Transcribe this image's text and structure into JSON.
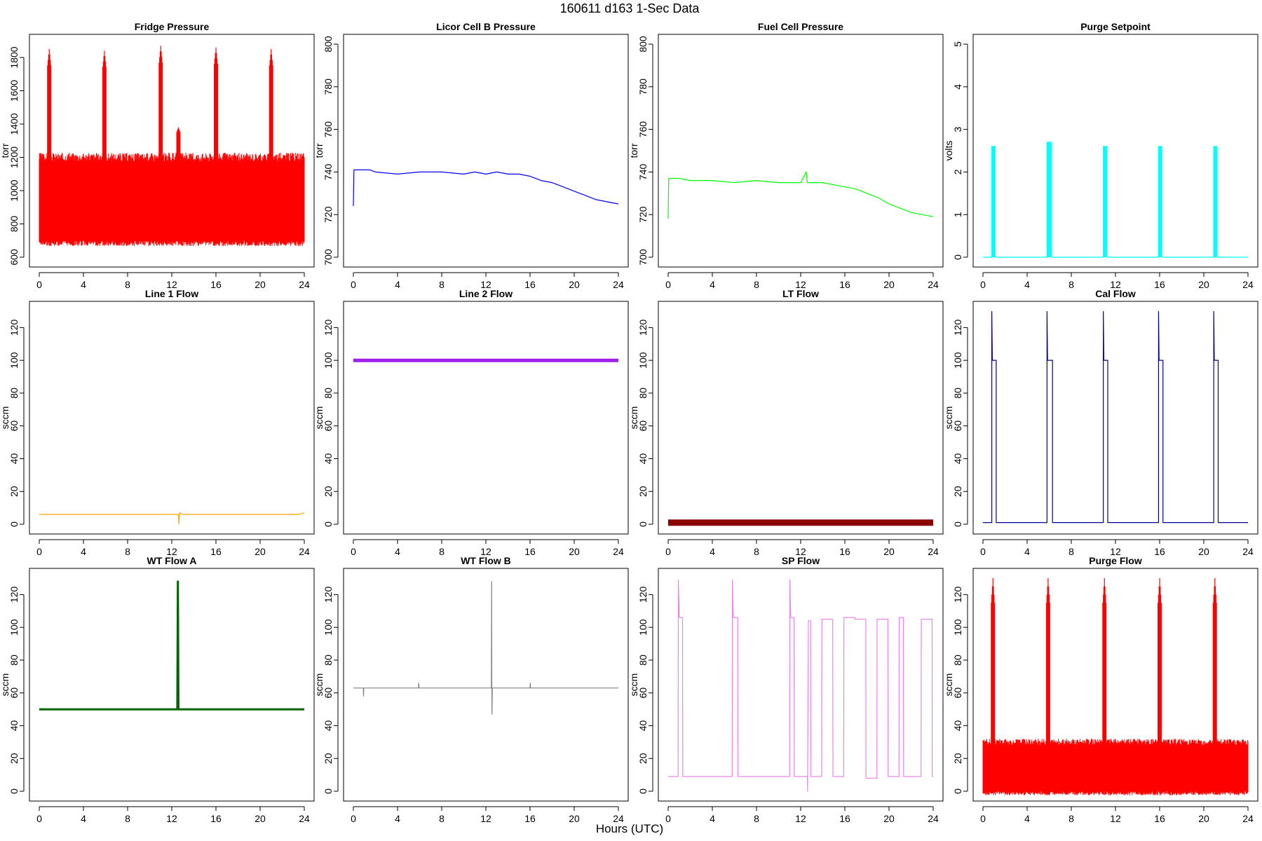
{
  "figure": {
    "title": "160611   d163   1-Sec Data",
    "xlabel": "Hours (UTC)"
  },
  "chart_data": [
    {
      "type": "line",
      "title": "Fridge Pressure",
      "ylabel": "torr",
      "color": "#ff0000",
      "xlim": [
        0,
        24
      ],
      "ylim": [
        600,
        1880
      ],
      "yticks": [
        600,
        800,
        1000,
        1200,
        1400,
        1600,
        1800
      ],
      "xticks": [
        0,
        4,
        8,
        12,
        16,
        20,
        24
      ],
      "render": "band",
      "band": {
        "x": [
          0,
          24
        ],
        "lo": 700,
        "hi": 1200,
        "jitter": 55
      },
      "spikes": [
        {
          "x": 0.9,
          "y": 1850
        },
        {
          "x": 5.9,
          "y": 1840
        },
        {
          "x": 11.0,
          "y": 1870
        },
        {
          "x": 16.0,
          "y": 1860
        },
        {
          "x": 21.0,
          "y": 1850
        },
        {
          "x": 12.6,
          "y": 1380
        }
      ]
    },
    {
      "type": "line",
      "title": "Licor Cell B Pressure",
      "ylabel": "torr",
      "color": "#0000ff",
      "xlim": [
        0,
        24
      ],
      "ylim": [
        700,
        800
      ],
      "yticks": [
        700,
        720,
        740,
        760,
        780,
        800
      ],
      "xticks": [
        0,
        4,
        8,
        12,
        16,
        20,
        24
      ],
      "x": [
        0,
        0.05,
        1,
        1.5,
        2,
        4,
        6,
        6.5,
        8,
        10,
        11,
        12,
        13,
        14,
        15,
        16,
        17,
        18,
        19,
        20,
        21,
        22,
        23,
        24
      ],
      "y": [
        724,
        741,
        741,
        741,
        740,
        739,
        740,
        740,
        740,
        739,
        740,
        739,
        740,
        739,
        739,
        738,
        736,
        735,
        733,
        731,
        729,
        727,
        726,
        725
      ]
    },
    {
      "type": "line",
      "title": "Fuel Cell Pressure",
      "ylabel": "torr",
      "color": "#00ff00",
      "xlim": [
        0,
        24
      ],
      "ylim": [
        700,
        800
      ],
      "yticks": [
        700,
        720,
        740,
        760,
        780,
        800
      ],
      "xticks": [
        0,
        4,
        8,
        12,
        16,
        20,
        24
      ],
      "x": [
        0,
        0.05,
        1,
        2,
        4,
        6,
        8,
        10,
        12,
        12.5,
        12.6,
        13,
        14,
        16,
        17,
        18,
        19,
        20,
        21,
        22,
        23,
        24
      ],
      "y": [
        718,
        737,
        737,
        736,
        736,
        735,
        736,
        735,
        735,
        740,
        735,
        735,
        735,
        733,
        732,
        730,
        728,
        725,
        723,
        721,
        720,
        719
      ]
    },
    {
      "type": "line",
      "title": "Purge Setpoint",
      "ylabel": "volts",
      "color": "#00ffff",
      "xlim": [
        0,
        24
      ],
      "ylim": [
        0,
        5
      ],
      "yticks": [
        0,
        1,
        2,
        3,
        4,
        5
      ],
      "xticks": [
        0,
        4,
        8,
        12,
        16,
        20,
        24
      ],
      "render": "pulses",
      "baseline": 0,
      "pulses": [
        {
          "start": 0.8,
          "end": 1.1,
          "value": 2.6
        },
        {
          "start": 5.8,
          "end": 6.2,
          "value": 2.7
        },
        {
          "start": 10.9,
          "end": 11.2,
          "value": 2.6
        },
        {
          "start": 15.9,
          "end": 16.2,
          "value": 2.6
        },
        {
          "start": 20.9,
          "end": 21.2,
          "value": 2.6
        }
      ]
    },
    {
      "type": "line",
      "title": "Line 1 Flow",
      "ylabel": "sccm",
      "color": "#ffa500",
      "xlim": [
        0,
        24
      ],
      "ylim": [
        0,
        130
      ],
      "yticks": [
        0,
        20,
        40,
        60,
        80,
        100,
        120
      ],
      "xticks": [
        0,
        4,
        8,
        12,
        16,
        20,
        24
      ],
      "x": [
        0,
        4,
        8,
        12,
        12.6,
        12.65,
        12.7,
        13,
        14,
        16,
        18,
        20,
        23.5,
        24
      ],
      "y": [
        6,
        6,
        6,
        6,
        6,
        0,
        7,
        6,
        6,
        6,
        6,
        6,
        6,
        7
      ]
    },
    {
      "type": "line",
      "title": "Line 2 Flow",
      "ylabel": "sccm",
      "color": "#a020f0",
      "xlim": [
        0,
        24
      ],
      "ylim": [
        0,
        130
      ],
      "yticks": [
        0,
        20,
        40,
        60,
        80,
        100,
        120
      ],
      "xticks": [
        0,
        4,
        8,
        12,
        16,
        20,
        24
      ],
      "x": [
        0,
        24
      ],
      "y": [
        100,
        100
      ],
      "width": 5
    },
    {
      "type": "line",
      "title": "LT Flow",
      "ylabel": "sccm",
      "color": "#8b0000",
      "xlim": [
        0,
        24
      ],
      "ylim": [
        0,
        130
      ],
      "yticks": [
        0,
        20,
        40,
        60,
        80,
        100,
        120
      ],
      "xticks": [
        0,
        4,
        8,
        12,
        16,
        20,
        24
      ],
      "x": [
        0,
        24
      ],
      "y": [
        1,
        1
      ],
      "width": 9
    },
    {
      "type": "line",
      "title": "Cal Flow",
      "ylabel": "sccm",
      "color": "#00008b",
      "xlim": [
        0,
        24
      ],
      "ylim": [
        0,
        130
      ],
      "yticks": [
        0,
        20,
        40,
        60,
        80,
        100,
        120
      ],
      "xticks": [
        0,
        4,
        8,
        12,
        16,
        20,
        24
      ],
      "render": "pulses",
      "baseline": 1,
      "pulses": [
        {
          "start": 0.8,
          "end": 1.2,
          "value": 100,
          "overshoot": 130
        },
        {
          "start": 5.8,
          "end": 6.3,
          "value": 100,
          "overshoot": 130
        },
        {
          "start": 10.9,
          "end": 11.3,
          "value": 100,
          "overshoot": 130
        },
        {
          "start": 15.9,
          "end": 16.3,
          "value": 100,
          "overshoot": 130
        },
        {
          "start": 20.9,
          "end": 21.3,
          "value": 100,
          "overshoot": 130
        }
      ]
    },
    {
      "type": "line",
      "title": "WT Flow A",
      "ylabel": "sccm",
      "color": "#006400",
      "xlim": [
        0,
        24
      ],
      "ylim": [
        0,
        130
      ],
      "yticks": [
        0,
        20,
        40,
        60,
        80,
        100,
        120
      ],
      "xticks": [
        0,
        4,
        8,
        12,
        16,
        20,
        24
      ],
      "x": [
        0,
        12.5,
        12.55,
        12.6,
        24
      ],
      "y": [
        50,
        50,
        128,
        50,
        50
      ],
      "width": 3
    },
    {
      "type": "line",
      "title": "WT Flow B",
      "ylabel": "sccm",
      "color": "#808080",
      "xlim": [
        0,
        24
      ],
      "ylim": [
        0,
        130
      ],
      "yticks": [
        0,
        20,
        40,
        60,
        80,
        100,
        120
      ],
      "xticks": [
        0,
        4,
        8,
        12,
        16,
        20,
        24
      ],
      "x": [
        0,
        0.9,
        0.92,
        0.94,
        5.9,
        5.92,
        5.94,
        12.5,
        12.52,
        12.54,
        12.56,
        12.58,
        16,
        16.02,
        16.04,
        24
      ],
      "y": [
        63,
        63,
        58,
        63,
        63,
        66,
        63,
        63,
        128,
        63,
        47,
        63,
        63,
        66,
        63,
        63
      ]
    },
    {
      "type": "line",
      "title": "SP Flow",
      "ylabel": "sccm",
      "color": "#ee82ee",
      "xlim": [
        0,
        24
      ],
      "ylim": [
        0,
        130
      ],
      "yticks": [
        0,
        20,
        40,
        60,
        80,
        100,
        120
      ],
      "xticks": [
        0,
        4,
        8,
        12,
        16,
        20,
        24
      ],
      "x": [
        0,
        0.9,
        0.92,
        1,
        1.3,
        1.32,
        5.8,
        5.82,
        5.9,
        6.3,
        6.32,
        11,
        11.02,
        11.1,
        11.4,
        11.42,
        12.6,
        12.62,
        12.7,
        12.9,
        12.92,
        13.9,
        13.92,
        14.9,
        14.92,
        15.9,
        15.92,
        16.9,
        16.92,
        17.9,
        17.92,
        18.9,
        18.92,
        19.9,
        19.92,
        20.9,
        20.92,
        21.3,
        21.32,
        22.9,
        22.92,
        23.9,
        23.92,
        24
      ],
      "y": [
        9,
        9,
        129,
        106,
        106,
        9,
        9,
        129,
        106,
        106,
        9,
        9,
        129,
        106,
        106,
        9,
        9,
        0,
        104,
        104,
        9,
        9,
        105,
        105,
        9,
        9,
        106,
        106,
        105,
        105,
        8,
        8,
        105,
        105,
        9,
        9,
        106,
        106,
        9,
        9,
        105,
        105,
        9,
        9
      ]
    },
    {
      "type": "line",
      "title": "Purge Flow",
      "ylabel": "sccm",
      "color": "#ff0000",
      "xlim": [
        0,
        24
      ],
      "ylim": [
        0,
        130
      ],
      "yticks": [
        0,
        20,
        40,
        60,
        80,
        100,
        120
      ],
      "xticks": [
        0,
        4,
        8,
        12,
        16,
        20,
        24
      ],
      "render": "band",
      "band": {
        "x": [
          0,
          24
        ],
        "lo": 0,
        "hi": 30,
        "jitter": 4
      },
      "spikes": [
        {
          "x": 0.9,
          "y": 130
        },
        {
          "x": 5.9,
          "y": 130
        },
        {
          "x": 11.0,
          "y": 130
        },
        {
          "x": 16.0,
          "y": 130
        },
        {
          "x": 21.0,
          "y": 130
        }
      ]
    }
  ]
}
